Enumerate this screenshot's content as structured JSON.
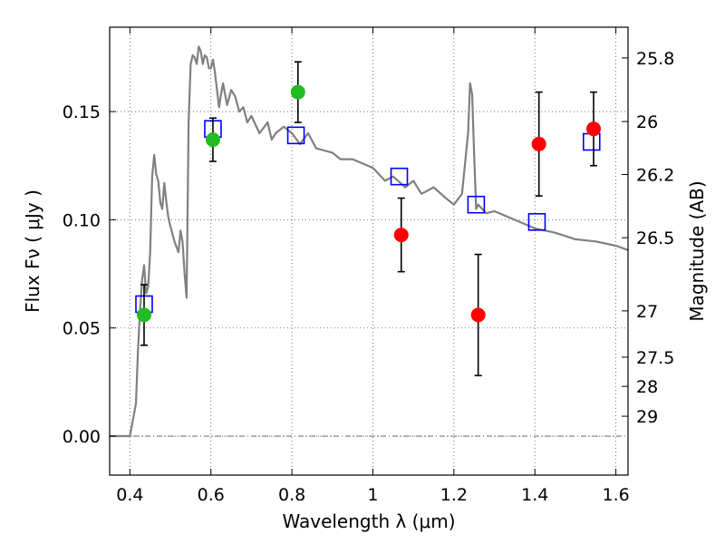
{
  "chart_data": {
    "type": "scatter",
    "xlabel": "Wavelength  λ (μm)",
    "ylabel": "Flux  Fν  ( μJy )",
    "y2label": "Magnitude (AB)",
    "xlim": [
      0.35,
      1.63
    ],
    "ylim": [
      -0.018,
      0.189
    ],
    "xticks": [
      0.4,
      0.6,
      0.8,
      1.0,
      1.2,
      1.4,
      1.6
    ],
    "xtick_labels": [
      "0.4",
      "0.6",
      "0.8",
      "1",
      "1.2",
      "1.4",
      "1.6"
    ],
    "yticks": [
      0.0,
      0.05,
      0.1,
      0.15
    ],
    "ytick_labels": [
      "0.00",
      "0.05",
      "0.10",
      "0.15"
    ],
    "y2ticks": [
      {
        "label": "25.8",
        "flux": 0.1748
      },
      {
        "label": "26",
        "flux": 0.1454
      },
      {
        "label": "26.2",
        "flux": 0.1209
      },
      {
        "label": "26.5",
        "flux": 0.0917
      },
      {
        "label": "27",
        "flux": 0.0579
      },
      {
        "label": "27.5",
        "flux": 0.0365
      },
      {
        "label": "28",
        "flux": 0.023
      },
      {
        "label": "29",
        "flux": 0.0092
      }
    ],
    "grid": true,
    "zero_line": true,
    "colors": {
      "model": "#808080",
      "red": "#ff0000",
      "green": "#22bb22",
      "box": "#0000ff",
      "error": "#000000"
    },
    "series": [
      {
        "kind": "line",
        "color": "#808080",
        "x": [
          0.35,
          0.4,
          0.405,
          0.415,
          0.42,
          0.425,
          0.43,
          0.435,
          0.44,
          0.445,
          0.45,
          0.455,
          0.46,
          0.465,
          0.47,
          0.475,
          0.48,
          0.485,
          0.49,
          0.495,
          0.5,
          0.51,
          0.52,
          0.525,
          0.53,
          0.535,
          0.54,
          0.545,
          0.55,
          0.555,
          0.56,
          0.565,
          0.57,
          0.575,
          0.58,
          0.585,
          0.59,
          0.595,
          0.6,
          0.605,
          0.61,
          0.62,
          0.625,
          0.63,
          0.64,
          0.65,
          0.66,
          0.67,
          0.68,
          0.69,
          0.7,
          0.72,
          0.74,
          0.75,
          0.76,
          0.78,
          0.8,
          0.82,
          0.84,
          0.86,
          0.88,
          0.9,
          0.92,
          0.95,
          1.0,
          1.03,
          1.05,
          1.08,
          1.1,
          1.12,
          1.15,
          1.18,
          1.2,
          1.22,
          1.235,
          1.24,
          1.245,
          1.25,
          1.255,
          1.26,
          1.28,
          1.3,
          1.35,
          1.4,
          1.45,
          1.5,
          1.55,
          1.6,
          1.63
        ],
        "y": [
          0.0,
          0.0,
          0.005,
          0.015,
          0.04,
          0.058,
          0.072,
          0.079,
          0.066,
          0.069,
          0.085,
          0.12,
          0.13,
          0.121,
          0.118,
          0.108,
          0.105,
          0.117,
          0.108,
          0.101,
          0.097,
          0.09,
          0.085,
          0.095,
          0.09,
          0.075,
          0.064,
          0.145,
          0.172,
          0.176,
          0.175,
          0.172,
          0.18,
          0.178,
          0.172,
          0.176,
          0.175,
          0.17,
          0.17,
          0.174,
          0.168,
          0.152,
          0.158,
          0.163,
          0.153,
          0.16,
          0.157,
          0.15,
          0.152,
          0.145,
          0.148,
          0.14,
          0.145,
          0.137,
          0.14,
          0.143,
          0.14,
          0.135,
          0.14,
          0.133,
          0.132,
          0.131,
          0.128,
          0.128,
          0.124,
          0.118,
          0.12,
          0.115,
          0.118,
          0.112,
          0.115,
          0.11,
          0.107,
          0.112,
          0.14,
          0.163,
          0.158,
          0.13,
          0.105,
          0.107,
          0.103,
          0.104,
          0.1,
          0.096,
          0.094,
          0.091,
          0.09,
          0.088,
          0.086
        ]
      },
      {
        "kind": "boxes",
        "color": "#0000ff",
        "x": [
          0.435,
          0.605,
          0.81,
          1.065,
          1.255,
          1.405,
          1.54
        ],
        "y": [
          0.061,
          0.142,
          0.139,
          0.12,
          0.107,
          0.099,
          0.136
        ]
      },
      {
        "kind": "points",
        "color": "#22bb22",
        "x": [
          0.435,
          0.605,
          0.815
        ],
        "y": [
          0.056,
          0.137,
          0.159
        ],
        "yerr": [
          0.014,
          0.01,
          0.014
        ]
      },
      {
        "kind": "points",
        "color": "#ff0000",
        "x": [
          1.07,
          1.26,
          1.41,
          1.545
        ],
        "y": [
          0.093,
          0.056,
          0.135,
          0.142
        ],
        "yerr": [
          0.017,
          0.028,
          0.024,
          0.017
        ]
      }
    ]
  }
}
